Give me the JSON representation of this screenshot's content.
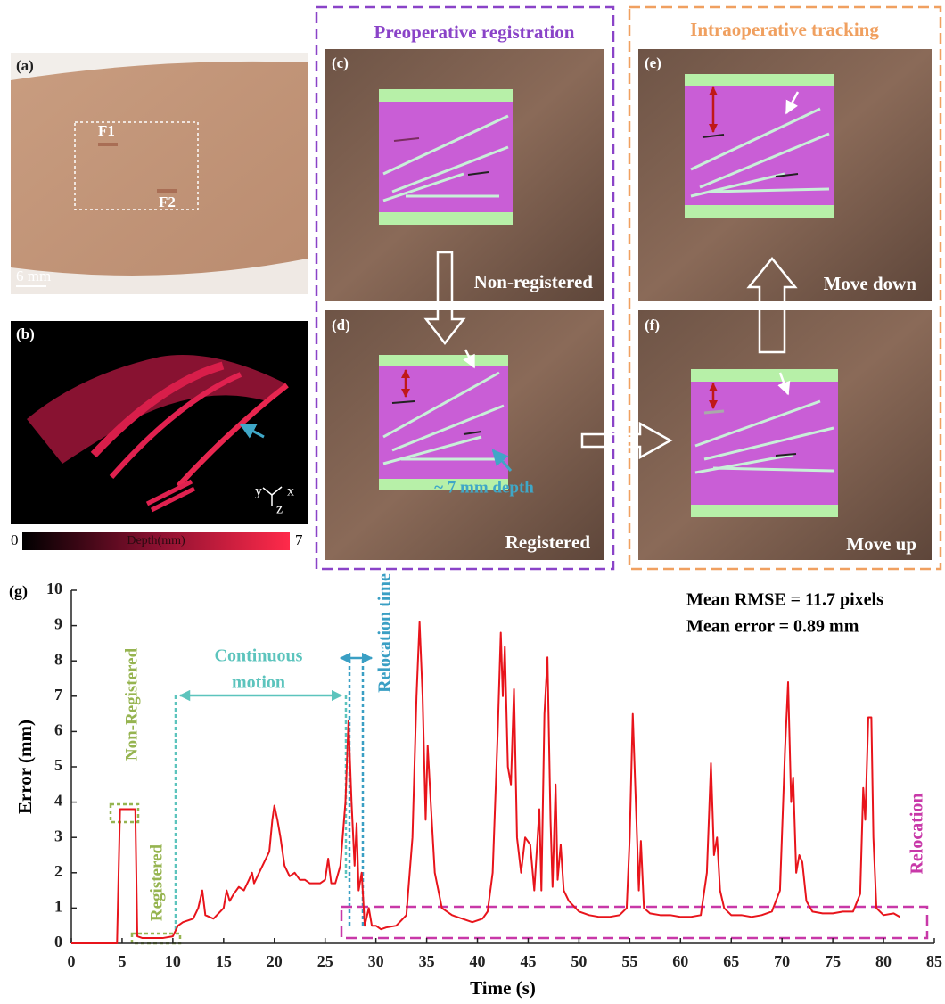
{
  "panel_a": {
    "label": "(a)",
    "marker_1": "F1",
    "marker_2": "F2",
    "scale_bar": "6 mm"
  },
  "panel_b": {
    "label": "(b)",
    "axes": [
      "y",
      "x",
      "z"
    ],
    "colorbar": {
      "min": 0,
      "title": "Depth(mm)",
      "max": 7
    }
  },
  "group_preop": {
    "title": "Preoperative registration"
  },
  "panel_c": {
    "label": "(c)",
    "caption": "Non-registered"
  },
  "panel_d": {
    "label": "(d)",
    "caption": "Registered",
    "annotation": "~ 7 mm depth"
  },
  "group_intraop": {
    "title": "Intraoperative tracking"
  },
  "panel_e": {
    "label": "(e)",
    "caption": "Move down"
  },
  "panel_f": {
    "label": "(f)",
    "caption": "Move up"
  },
  "chart_data": {
    "type": "line",
    "panel_label": "(g)",
    "xlabel": "Time (s)",
    "ylabel": "Error (mm)",
    "x": [
      0,
      4.5,
      4.8,
      5,
      6,
      6.3,
      6.5,
      7,
      8,
      9,
      10,
      10.5,
      11,
      12,
      12.5,
      12.9,
      13.2,
      14,
      15,
      15.3,
      15.6,
      16,
      16.5,
      17,
      17.5,
      17.8,
      18,
      18.5,
      19,
      19.5,
      19.8,
      20,
      20.3,
      20.6,
      21,
      21.5,
      22,
      22.5,
      23,
      23.5,
      24,
      24.5,
      25,
      25.3,
      25.6,
      26,
      26.5,
      27,
      27.3,
      27.6,
      27.9,
      28.1,
      28.3,
      28.6,
      28.9,
      29.3,
      29.6,
      30,
      30.5,
      31,
      32,
      33,
      33.6,
      34,
      34.3,
      34.6,
      34.9,
      35.1,
      35.4,
      35.8,
      36.5,
      37.5,
      38.5,
      39.5,
      40.5,
      41,
      41.5,
      42,
      42.3,
      42.5,
      42.7,
      43,
      43.3,
      43.6,
      43.9,
      44.3,
      44.7,
      45.2,
      45.6,
      46.1,
      46.3,
      46.6,
      46.9,
      47.2,
      47.4,
      47.7,
      47.9,
      48.2,
      48.5,
      49,
      50,
      51,
      52,
      53,
      54,
      54.7,
      55,
      55.3,
      55.6,
      55.9,
      56.1,
      56.4,
      57,
      58,
      59,
      60,
      61,
      62,
      62.6,
      63,
      63.3,
      63.6,
      63.9,
      64.3,
      65,
      66,
      67,
      68,
      69,
      69.8,
      70.3,
      70.6,
      70.9,
      71.1,
      71.4,
      71.7,
      72,
      72.4,
      73,
      74,
      75,
      76,
      77,
      77.7,
      78,
      78.2,
      78.5,
      78.8,
      79,
      79.3,
      80,
      81,
      81.6
    ],
    "series": [
      {
        "color": "#e8141b",
        "values": [
          0,
          0,
          3.8,
          3.8,
          3.8,
          3.8,
          0.2,
          0.15,
          0.15,
          0.15,
          0.2,
          0.5,
          0.6,
          0.7,
          1.0,
          1.5,
          0.8,
          0.7,
          1.0,
          1.5,
          1.2,
          1.4,
          1.6,
          1.5,
          1.8,
          2.0,
          1.7,
          2.0,
          2.3,
          2.6,
          3.5,
          3.9,
          3.5,
          3.0,
          2.2,
          1.9,
          2.0,
          1.8,
          1.8,
          1.7,
          1.7,
          1.7,
          1.8,
          2.4,
          1.7,
          1.7,
          2.2,
          4.0,
          6.3,
          4.0,
          2.2,
          3.4,
          1.5,
          2.0,
          0.5,
          1.0,
          0.5,
          0.5,
          0.4,
          0.45,
          0.5,
          0.8,
          3.0,
          7.0,
          9.1,
          7.0,
          3.5,
          5.6,
          4.0,
          2.0,
          1.0,
          0.8,
          0.7,
          0.6,
          0.7,
          0.9,
          2.0,
          6.0,
          8.8,
          7.0,
          8.4,
          5.0,
          4.5,
          7.2,
          3.0,
          2.0,
          3.0,
          2.8,
          1.5,
          3.8,
          1.5,
          6.5,
          8.1,
          3.5,
          1.6,
          4.5,
          1.8,
          2.8,
          1.5,
          1.2,
          0.9,
          0.8,
          0.75,
          0.75,
          0.8,
          1.0,
          3.0,
          6.5,
          4.0,
          1.5,
          2.9,
          1.0,
          0.85,
          0.8,
          0.8,
          0.75,
          0.75,
          0.8,
          2.0,
          5.1,
          2.5,
          3.0,
          1.5,
          1.0,
          0.8,
          0.8,
          0.75,
          0.8,
          0.9,
          1.5,
          5.5,
          7.4,
          4.0,
          4.7,
          2.0,
          2.5,
          2.3,
          1.2,
          0.9,
          0.85,
          0.85,
          0.9,
          0.9,
          1.4,
          4.4,
          3.5,
          6.4,
          6.4,
          3.0,
          1.0,
          0.8,
          0.85,
          0.75
        ]
      }
    ],
    "xlim": [
      0,
      85
    ],
    "ylim": [
      0,
      10
    ],
    "xticks": [
      0,
      5,
      10,
      15,
      20,
      25,
      30,
      35,
      40,
      45,
      50,
      55,
      60,
      65,
      70,
      75,
      80,
      85
    ],
    "yticks": [
      0,
      1,
      2,
      3,
      4,
      5,
      6,
      7,
      8,
      9,
      10
    ],
    "annotations": {
      "stats": [
        "Mean RMSE = 11.7 pixels",
        "Mean error = 0.89 mm"
      ],
      "non_registered": "Non-Registered",
      "registered": "Registered",
      "continuous_motion": [
        "Continuous",
        "motion"
      ],
      "relocation_time": "Relocation time",
      "relocation": "Relocation"
    }
  }
}
